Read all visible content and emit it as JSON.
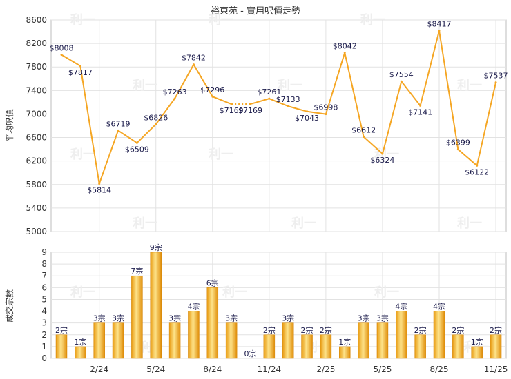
{
  "chart_data": [
    {
      "type": "line",
      "title": "裕東苑 - 實用呎價走勢",
      "ylabel": "平均呎價",
      "ylim": [
        5000,
        8600
      ],
      "y_ticks": [
        5000,
        5400,
        5800,
        6200,
        6600,
        7000,
        7400,
        7800,
        8200,
        8600
      ],
      "grid": true,
      "color": "#f5a623",
      "series": [
        {
          "values": [
            8008,
            7817,
            5814,
            6719,
            6509,
            6826,
            7263,
            7842,
            7296,
            7169,
            7169,
            7261,
            7133,
            7043,
            6998,
            8042,
            6612,
            6324,
            7554,
            7141,
            8417,
            6399,
            6122,
            7537
          ],
          "labels": [
            "$8008",
            "$7817",
            "$5814",
            "$6719",
            "$6509",
            "$6826",
            "$7263",
            "$7842",
            "$7296",
            "$7169",
            "$7169",
            "$7261",
            "$7133",
            "$7043",
            "$6998",
            "$8042",
            "$6612",
            "$6324",
            "$7554",
            "$7141",
            "$8417",
            "$6399",
            "$6122",
            "$7537"
          ],
          "gap_after_index": 9
        }
      ]
    },
    {
      "type": "bar",
      "ylabel": "成交宗數",
      "ylim": [
        0,
        9
      ],
      "y_ticks": [
        0,
        1,
        2,
        3,
        4,
        5,
        6,
        7,
        8,
        9
      ],
      "grid": true,
      "color": "#f5a623",
      "values": [
        2,
        1,
        3,
        3,
        7,
        9,
        3,
        4,
        6,
        3,
        0,
        2,
        3,
        2,
        2,
        1,
        3,
        3,
        4,
        2,
        4,
        2,
        1,
        2
      ],
      "labels": [
        "2宗",
        "1宗",
        "3宗",
        "3宗",
        "7宗",
        "9宗",
        "3宗",
        "4宗",
        "6宗",
        "3宗",
        "0宗",
        "2宗",
        "3宗",
        "2宗",
        "2宗",
        "1宗",
        "3宗",
        "3宗",
        "4宗",
        "2宗",
        "4宗",
        "2宗",
        "1宗",
        "2宗"
      ]
    }
  ],
  "x_axis": {
    "tick_labels": [
      "2/24",
      "5/24",
      "8/24",
      "11/24",
      "2/25",
      "5/25",
      "8/25",
      "11/25"
    ],
    "tick_month_index": [
      2,
      5,
      8,
      11,
      14,
      17,
      20,
      23
    ]
  },
  "watermark": "利一"
}
